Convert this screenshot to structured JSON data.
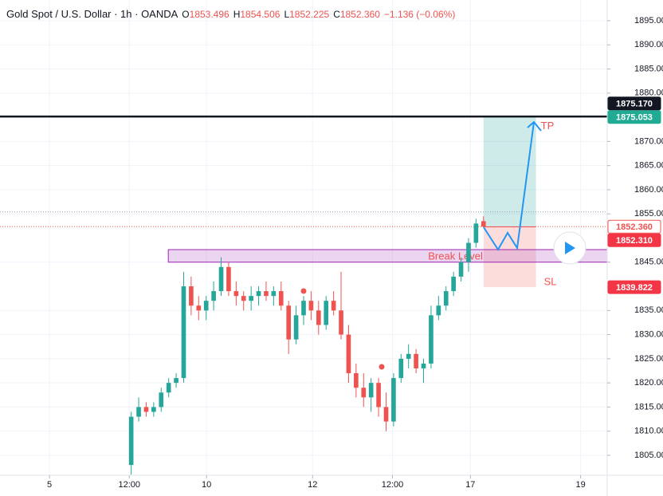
{
  "chart_data": {
    "type": "candlestick",
    "title": "Gold Spot / U.S. Dollar · 1h · OANDA",
    "ohlc_header": [
      {
        "label": "O",
        "value": "1853.496"
      },
      {
        "label": "H",
        "value": "1854.506"
      },
      {
        "label": "L",
        "value": "1852.225"
      },
      {
        "label": "C",
        "value": "1852.360"
      }
    ],
    "change": "−1.136 (−0.06%)",
    "x": [
      35,
      37,
      39,
      41,
      43,
      45,
      47,
      49,
      51,
      53,
      55,
      57,
      59,
      61,
      63,
      65,
      67,
      69,
      71,
      73,
      75,
      77,
      79,
      81,
      83,
      85,
      87,
      89,
      91,
      93,
      95,
      97,
      99,
      101,
      103,
      105,
      107,
      109,
      111,
      113,
      115,
      117,
      119,
      121,
      123,
      125,
      127,
      129
    ],
    "open": [
      1803,
      1813,
      1815,
      1814,
      1815,
      1818,
      1820,
      1821,
      1840,
      1836,
      1835,
      1837,
      1839,
      1844,
      1839,
      1838,
      1837,
      1838,
      1839,
      1838,
      1839,
      1836,
      1829,
      1834,
      1837,
      1835,
      1832,
      1837,
      1835,
      1830,
      1822,
      1819,
      1817,
      1820,
      1815,
      1812,
      1821,
      1825,
      1826,
      1823,
      1824,
      1834,
      1836,
      1839,
      1842,
      1845,
      1849,
      1853.496
    ],
    "high": [
      1814,
      1817,
      1816,
      1816,
      1819,
      1821,
      1822,
      1843,
      1842,
      1838,
      1838,
      1841,
      1846,
      1845,
      1841,
      1839,
      1840,
      1840,
      1841,
      1840,
      1841,
      1837,
      1836,
      1838,
      1839,
      1837,
      1838,
      1839,
      1843,
      1832,
      1824,
      1822,
      1821,
      1821,
      1818,
      1822,
      1826,
      1828,
      1827,
      1825,
      1836,
      1838,
      1840,
      1843,
      1846,
      1850,
      1854,
      1854.506
    ],
    "low": [
      1801,
      1812,
      1813,
      1813,
      1814,
      1817,
      1819,
      1820,
      1834,
      1833,
      1833,
      1835,
      1838,
      1838,
      1836,
      1835,
      1835,
      1836,
      1837,
      1836,
      1835,
      1826,
      1828,
      1832,
      1833,
      1830,
      1831,
      1834,
      1829,
      1820,
      1817,
      1815,
      1814,
      1813,
      1810,
      1811,
      1820,
      1823,
      1822,
      1820,
      1823,
      1833,
      1835,
      1838,
      1841,
      1843,
      1848,
      1852.225
    ],
    "close": [
      1813,
      1815,
      1814,
      1815,
      1818,
      1820,
      1821,
      1840,
      1836,
      1835,
      1837,
      1839,
      1844,
      1839,
      1838,
      1837,
      1838,
      1839,
      1838,
      1839,
      1836,
      1829,
      1834,
      1837,
      1835,
      1832,
      1837,
      1835,
      1830,
      1822,
      1819,
      1817,
      1820,
      1815,
      1812,
      1821,
      1825,
      1826,
      1823,
      1824,
      1834,
      1836,
      1839,
      1842,
      1845,
      1849,
      1853,
      1852.36
    ],
    "up_color": "#26a69a",
    "down_color": "#ef5350",
    "xlim": [
      0,
      162
    ],
    "xticks": [
      {
        "value": 13.2,
        "label": "5"
      },
      {
        "value": 34.5,
        "label": "12:00"
      },
      {
        "value": 55.1,
        "label": "10"
      },
      {
        "value": 83.4,
        "label": "12"
      },
      {
        "value": 104.7,
        "label": "12:00"
      },
      {
        "value": 125.5,
        "label": "17"
      },
      {
        "value": 154.9,
        "label": "19"
      }
    ],
    "ylim": [
      1800.87,
      1899.29
    ],
    "yticks": [
      {
        "value": 1895,
        "label": "1895.000"
      },
      {
        "value": 1890,
        "label": "1890.000"
      },
      {
        "value": 1885,
        "label": "1885.000"
      },
      {
        "value": 1880,
        "label": "1880.000"
      },
      {
        "value": 1870,
        "label": "1870.000"
      },
      {
        "value": 1865,
        "label": "1865.000"
      },
      {
        "value": 1860,
        "label": "1860.000"
      },
      {
        "value": 1855,
        "label": "1855.000"
      },
      {
        "value": 1845,
        "label": "1845.000"
      },
      {
        "value": 1835,
        "label": "1835.000"
      },
      {
        "value": 1830,
        "label": "1830.000"
      },
      {
        "value": 1825,
        "label": "1825.000"
      },
      {
        "value": 1820,
        "label": "1820.000"
      },
      {
        "value": 1815,
        "label": "1815.000"
      },
      {
        "value": 1810,
        "label": "1810.000"
      },
      {
        "value": 1805,
        "label": "1805.000"
      }
    ],
    "horizontal_line": {
      "value": 1875.17,
      "color": "#131722"
    },
    "session_high_line": 1855.4,
    "price_labels": [
      {
        "value": 1875.053,
        "label": "1875.053",
        "color": "#22ab94",
        "text_color": "#ffffff"
      },
      {
        "value": 1875.17,
        "label": "1875.170",
        "color": "#131722",
        "text_color": "#ffffff"
      },
      {
        "value": 1852.36,
        "label": "1852.360",
        "color": "#ffffff",
        "text_color": "#ef5350"
      },
      {
        "value": 1852.31,
        "label": "1852.310",
        "color": "#f23645",
        "text_color": "#ffffff"
      },
      {
        "value": 1839.822,
        "label": "1839.822",
        "color": "#f23645",
        "text_color": "#ffffff"
      }
    ],
    "break_level": {
      "label": "Break Level",
      "low": 1845.0,
      "high": 1847.6,
      "start": 44.9
    },
    "position": {
      "start": 129,
      "end": 143,
      "entry": 1852.31,
      "target": 1875.053,
      "stop": 1839.822,
      "target_label": "TP",
      "stop_label": "SL"
    }
  }
}
